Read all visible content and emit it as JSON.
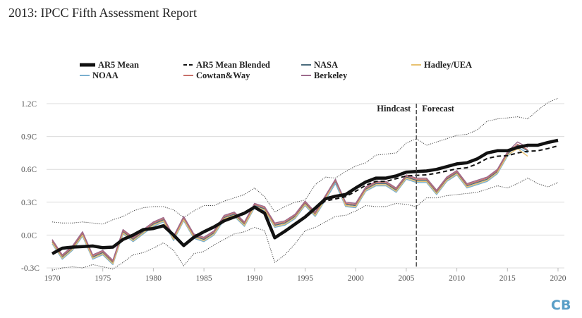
{
  "title": "2013: IPCC Fifth Assessment Report",
  "logo_text": "CB",
  "chart_data": {
    "type": "line",
    "title": "2013: IPCC Fifth Assessment Report",
    "xlabel": "",
    "ylabel": "",
    "xlim": [
      1970,
      2020
    ],
    "ylim": [
      -0.3,
      1.2
    ],
    "x_ticks": [
      "1970",
      "1975",
      "1980",
      "1985",
      "1990",
      "1995",
      "2000",
      "2005",
      "2010",
      "2015",
      "2020"
    ],
    "y_ticks": [
      {
        "v": 1.2,
        "label": "1.2C"
      },
      {
        "v": 0.9,
        "label": "0.9C"
      },
      {
        "v": 0.6,
        "label": "0.6C"
      },
      {
        "v": 0.3,
        "label": "0.3C"
      },
      {
        "v": 0.0,
        "label": "0.0C"
      },
      {
        "v": -0.3,
        "label": "-0.3C"
      }
    ],
    "grid": true,
    "legend_position": "top",
    "annotations": {
      "divider_year": 2006,
      "left_label": "Hindcast",
      "right_label": "Forecast"
    },
    "envelope": {
      "x_start": 1970,
      "upper": [
        0.12,
        0.11,
        0.11,
        0.12,
        0.11,
        0.1,
        0.14,
        0.17,
        0.22,
        0.25,
        0.26,
        0.26,
        0.23,
        0.16,
        0.22,
        0.27,
        0.27,
        0.31,
        0.34,
        0.37,
        0.43,
        0.35,
        0.21,
        0.26,
        0.3,
        0.32,
        0.46,
        0.53,
        0.52,
        0.58,
        0.63,
        0.66,
        0.73,
        0.74,
        0.75,
        0.84,
        0.88,
        0.82,
        0.85,
        0.88,
        0.91,
        0.92,
        0.96,
        1.04,
        1.06,
        1.07,
        1.08,
        1.06,
        1.14,
        1.21,
        1.25
      ],
      "lower": [
        -0.32,
        -0.3,
        -0.29,
        -0.3,
        -0.27,
        -0.29,
        -0.31,
        -0.25,
        -0.18,
        -0.16,
        -0.12,
        -0.07,
        -0.14,
        -0.28,
        -0.17,
        -0.15,
        -0.09,
        -0.04,
        0.01,
        0.03,
        0.07,
        0.04,
        -0.25,
        -0.18,
        -0.08,
        0.04,
        0.07,
        0.12,
        0.17,
        0.18,
        0.22,
        0.27,
        0.26,
        0.26,
        0.29,
        0.28,
        0.26,
        0.34,
        0.34,
        0.36,
        0.37,
        0.38,
        0.39,
        0.42,
        0.45,
        0.43,
        0.47,
        0.52,
        0.47,
        0.44,
        0.48
      ]
    },
    "series": [
      {
        "name": "NASA",
        "color": "#4a6b7c",
        "x_start": 1970,
        "style": "thin",
        "values": [
          -0.06,
          -0.2,
          -0.12,
          0.01,
          -0.2,
          -0.16,
          -0.25,
          0.03,
          -0.04,
          0.03,
          0.1,
          0.14,
          -0.03,
          0.15,
          -0.01,
          -0.04,
          0.02,
          0.16,
          0.19,
          0.1,
          0.27,
          0.24,
          0.09,
          0.11,
          0.17,
          0.29,
          0.19,
          0.34,
          0.49,
          0.28,
          0.27,
          0.42,
          0.47,
          0.47,
          0.41,
          0.53,
          0.5,
          0.5,
          0.39,
          0.51,
          0.57,
          0.45,
          0.48,
          0.51,
          0.58,
          0.74,
          0.82,
          0.77
        ]
      },
      {
        "name": "NOAA",
        "color": "#7ab0cf",
        "x_start": 1970,
        "style": "thin",
        "values": [
          -0.08,
          -0.22,
          -0.14,
          -0.01,
          -0.22,
          -0.18,
          -0.27,
          0.01,
          -0.06,
          0.01,
          0.08,
          0.12,
          -0.05,
          0.13,
          -0.03,
          -0.06,
          0.0,
          0.14,
          0.17,
          0.08,
          0.25,
          0.22,
          0.07,
          0.09,
          0.15,
          0.27,
          0.17,
          0.32,
          0.47,
          0.26,
          0.25,
          0.4,
          0.45,
          0.45,
          0.39,
          0.51,
          0.48,
          0.48,
          0.37,
          0.49,
          0.55,
          0.43,
          0.46,
          0.49,
          0.56,
          0.72,
          0.8,
          0.75
        ]
      },
      {
        "name": "Hadley/UEA",
        "color": "#e8c170",
        "x_start": 1970,
        "style": "thin",
        "values": [
          -0.07,
          -0.21,
          -0.13,
          0.0,
          -0.21,
          -0.17,
          -0.26,
          0.02,
          -0.05,
          0.02,
          0.09,
          0.13,
          -0.04,
          0.14,
          -0.02,
          -0.05,
          0.01,
          0.15,
          0.18,
          0.09,
          0.26,
          0.23,
          0.08,
          0.1,
          0.16,
          0.28,
          0.18,
          0.33,
          0.5,
          0.27,
          0.26,
          0.41,
          0.46,
          0.46,
          0.4,
          0.52,
          0.49,
          0.49,
          0.38,
          0.5,
          0.56,
          0.44,
          0.47,
          0.5,
          0.57,
          0.73,
          0.79,
          0.72
        ]
      },
      {
        "name": "Cowtan&Way",
        "color": "#c8706a",
        "x_start": 1970,
        "style": "thin",
        "values": [
          -0.05,
          -0.19,
          -0.11,
          0.02,
          -0.19,
          -0.15,
          -0.24,
          0.04,
          -0.03,
          0.04,
          0.11,
          0.15,
          -0.02,
          0.16,
          0.0,
          -0.03,
          0.03,
          0.17,
          0.2,
          0.11,
          0.28,
          0.25,
          0.1,
          0.12,
          0.18,
          0.3,
          0.2,
          0.35,
          0.5,
          0.29,
          0.28,
          0.43,
          0.48,
          0.48,
          0.42,
          0.54,
          0.51,
          0.51,
          0.4,
          0.52,
          0.58,
          0.46,
          0.49,
          0.52,
          0.59,
          0.75,
          0.83,
          0.78
        ]
      },
      {
        "name": "Berkeley",
        "color": "#9c6a8c",
        "x_start": 1970,
        "style": "thin",
        "values": [
          -0.04,
          -0.18,
          -0.1,
          0.03,
          -0.18,
          -0.14,
          -0.23,
          0.05,
          -0.02,
          0.05,
          0.12,
          0.16,
          -0.01,
          0.17,
          0.01,
          -0.02,
          0.04,
          0.18,
          0.21,
          0.12,
          0.29,
          0.26,
          0.11,
          0.13,
          0.19,
          0.31,
          0.21,
          0.36,
          0.51,
          0.3,
          0.29,
          0.44,
          0.49,
          0.49,
          0.43,
          0.55,
          0.52,
          0.52,
          0.41,
          0.53,
          0.59,
          0.47,
          0.5,
          0.53,
          0.6,
          0.76,
          0.85,
          0.8
        ]
      },
      {
        "name": "AR5 Mean Blended",
        "color": "#111111",
        "x_start": 1970,
        "style": "dashed",
        "values": [
          -0.17,
          -0.12,
          -0.11,
          -0.105,
          -0.1,
          -0.115,
          -0.11,
          -0.04,
          0.0,
          0.05,
          0.06,
          0.085,
          0.0,
          -0.095,
          -0.02,
          0.03,
          0.075,
          0.13,
          0.165,
          0.2,
          0.255,
          0.2,
          -0.025,
          0.035,
          0.1,
          0.165,
          0.245,
          0.31,
          0.33,
          0.35,
          0.4,
          0.455,
          0.49,
          0.49,
          0.515,
          0.54,
          0.545,
          0.55,
          0.565,
          0.585,
          0.605,
          0.615,
          0.65,
          0.7,
          0.72,
          0.725,
          0.75,
          0.765,
          0.77,
          0.79,
          0.815
        ]
      },
      {
        "name": "AR5 Mean",
        "color": "#111111",
        "x_start": 1970,
        "style": "thick",
        "values": [
          -0.17,
          -0.12,
          -0.11,
          -0.105,
          -0.1,
          -0.115,
          -0.11,
          -0.04,
          0.0,
          0.05,
          0.06,
          0.085,
          0.0,
          -0.095,
          -0.02,
          0.03,
          0.075,
          0.13,
          0.165,
          0.2,
          0.255,
          0.2,
          -0.025,
          0.035,
          0.1,
          0.165,
          0.245,
          0.33,
          0.355,
          0.37,
          0.43,
          0.485,
          0.52,
          0.52,
          0.54,
          0.575,
          0.58,
          0.585,
          0.6,
          0.625,
          0.65,
          0.66,
          0.695,
          0.75,
          0.77,
          0.77,
          0.8,
          0.82,
          0.82,
          0.845,
          0.865
        ]
      }
    ],
    "legend": [
      {
        "name": "AR5 Mean",
        "style": "thick",
        "color": "#111111"
      },
      {
        "name": "AR5 Mean Blended",
        "style": "dashed",
        "color": "#111111"
      },
      {
        "name": "NASA",
        "style": "thin",
        "color": "#4a6b7c"
      },
      {
        "name": "Hadley/UEA",
        "style": "thin",
        "color": "#e8c170"
      },
      {
        "name": "NOAA",
        "style": "thin",
        "color": "#7ab0cf"
      },
      {
        "name": "Cowtan&Way",
        "style": "thin",
        "color": "#c8706a"
      },
      {
        "name": "Berkeley",
        "style": "thin",
        "color": "#9c6a8c"
      }
    ]
  }
}
